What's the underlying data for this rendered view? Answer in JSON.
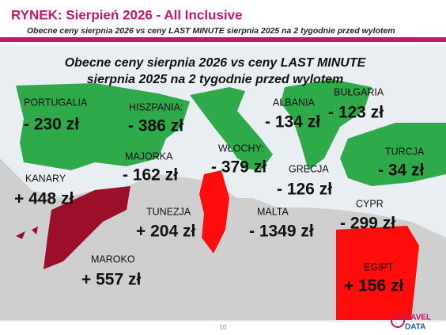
{
  "header": {
    "title": "RYNEK: Sierpień 2026 - All Inclusive",
    "subtitle": "Obecne ceny sierpnia 2026 vs ceny LAST MINUTE sierpnia 2025 na 2 tygodnie przed wylotem"
  },
  "map": {
    "title_lines": [
      "Obecne ceny sierpnia 2026 vs ceny LAST MINUTE",
      "sierpnia 2025 na 2 tygodnie przed wylotem"
    ],
    "regions": [
      {
        "name": "PORTUGALIA",
        "value": "- 230 zł"
      },
      {
        "name": "HISZPANIA:",
        "value": "- 386 zł"
      },
      {
        "name": "ALBANIA",
        "value": "- 134 zł"
      },
      {
        "name": "BUŁGARIA",
        "value": "- 123 zł"
      },
      {
        "name": "MAJORKA",
        "value": "- 162 zł"
      },
      {
        "name": "WŁOCHY:",
        "value": "- 379 zł"
      },
      {
        "name": "GRECJA",
        "value": "- 126 zł"
      },
      {
        "name": "TURCJA",
        "value": "- 34 zł"
      },
      {
        "name": "KANARY",
        "value": "+ 448 zł"
      },
      {
        "name": "TUNEZJA",
        "value": "+ 204 zł"
      },
      {
        "name": "MALTA",
        "value": "- 1349 zł"
      },
      {
        "name": "CYPR",
        "value": "- 299 zł"
      },
      {
        "name": "MAROKO",
        "value": "+ 557 zł"
      },
      {
        "name": "EGIPT",
        "value": "+ 156 zł"
      }
    ]
  },
  "footer": {
    "page": "10",
    "logo": [
      "RAVEL",
      "DATA"
    ]
  }
}
